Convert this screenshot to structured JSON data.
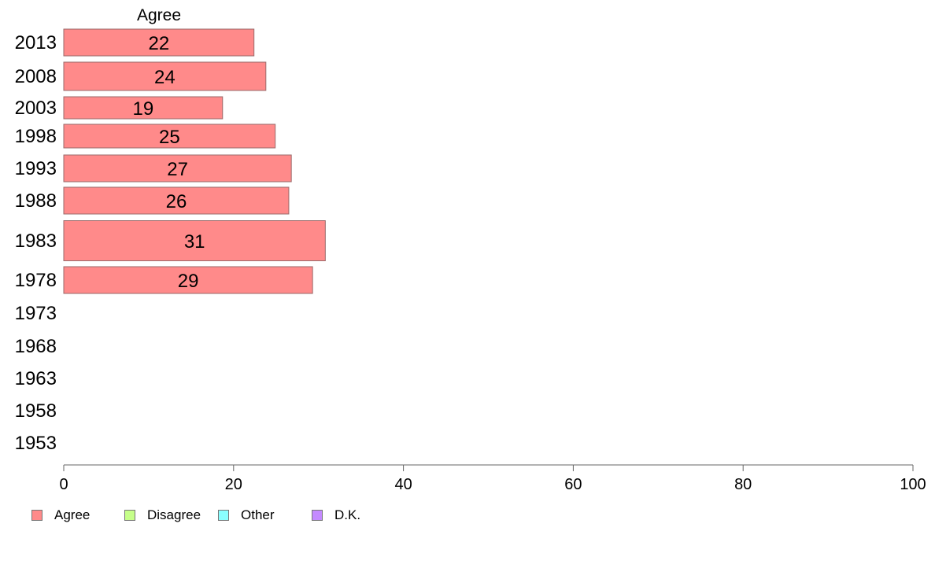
{
  "chart_data": {
    "type": "bar",
    "orientation": "horizontal",
    "column_title": "Agree",
    "categories": [
      "2013",
      "2008",
      "2003",
      "1998",
      "1993",
      "1988",
      "1983",
      "1978",
      "1973",
      "1968",
      "1963",
      "1958",
      "1953"
    ],
    "series": [
      {
        "name": "Agree",
        "values": [
          22.4,
          23.8,
          18.7,
          24.9,
          26.8,
          26.5,
          30.8,
          29.3,
          null,
          null,
          null,
          null,
          null
        ]
      }
    ],
    "data_labels": [
      "22",
      "24",
      "19",
      "25",
      "27",
      "26",
      "31",
      "29",
      "",
      "",
      "",
      "",
      ""
    ],
    "xlim": [
      0,
      100
    ],
    "xticks": [
      0,
      20,
      40,
      60,
      80,
      100
    ],
    "xtick_labels": [
      "0",
      "20",
      "40",
      "60",
      "80",
      "100"
    ],
    "grid": false,
    "legend": {
      "placement": "bottom-left",
      "items": [
        {
          "label": "Agree",
          "color": "#ff8a8a"
        },
        {
          "label": "Disagree",
          "color": "#c6ff8a"
        },
        {
          "label": "Other",
          "color": "#8affff"
        },
        {
          "label": "D.K.",
          "color": "#c48aff"
        }
      ]
    },
    "colors": {
      "bar": "#ff8a8a",
      "bar_border": "#9a6a6a",
      "axis": "#666666"
    }
  }
}
